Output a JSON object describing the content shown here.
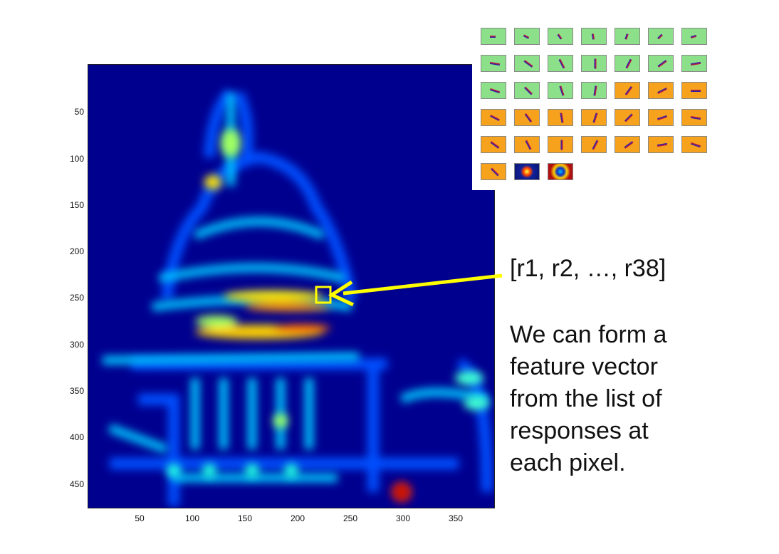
{
  "heatmap": {
    "y_ticks": [
      "50",
      "100",
      "150",
      "200",
      "250",
      "300",
      "350",
      "400",
      "450"
    ],
    "x_ticks": [
      "50",
      "100",
      "150",
      "200",
      "250",
      "300",
      "350"
    ],
    "colormap": "jet"
  },
  "filter_bank": {
    "rows": [
      [
        "green",
        "green",
        "green",
        "green",
        "green",
        "green",
        "green"
      ],
      [
        "green",
        "green",
        "green",
        "green",
        "green",
        "green",
        "green"
      ],
      [
        "green",
        "green",
        "green",
        "green",
        "orange",
        "orange",
        "orange"
      ],
      [
        "orange",
        "orange",
        "orange",
        "orange",
        "orange",
        "orange",
        "orange"
      ],
      [
        "orange",
        "orange",
        "orange",
        "orange",
        "orange",
        "orange",
        "orange"
      ],
      [
        "orange",
        "blue",
        "darkred"
      ]
    ],
    "colors": {
      "green": "#8de08a",
      "orange": "#f7a21c",
      "blue": "#10209a",
      "darkred": "#b01010"
    }
  },
  "annotation": {
    "vector_label": "[r1, r2, …, r38]",
    "arrow_color": "#ffff00",
    "description_lines": [
      "We can form a",
      "feature vector",
      "from the list of",
      "responses at",
      "each pixel."
    ]
  }
}
